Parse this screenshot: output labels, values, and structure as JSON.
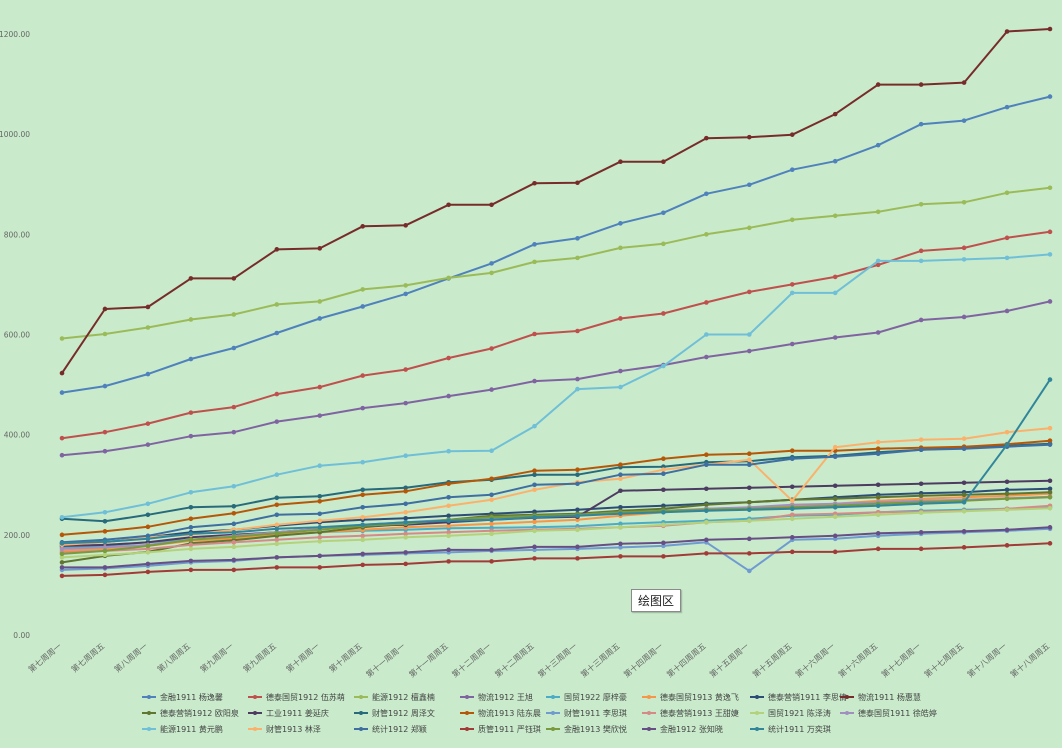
{
  "tooltip": "绘图区",
  "chart_data": {
    "type": "line",
    "ylim": [
      0,
      1200
    ],
    "yticks": [
      "0.00",
      "200.00",
      "400.00",
      "600.00",
      "800.00",
      "1000.00",
      "1200.00"
    ],
    "grid": false,
    "legend_position": "bottom",
    "categories": [
      "第七周周一",
      "第七周周五",
      "第八周周一",
      "第八周周五",
      "第九周周一",
      "第九周周五",
      "第十周周一",
      "第十周周五",
      "第十一周周一",
      "第十一周周五",
      "第十二周周一",
      "第十二周周五",
      "第十三周周一",
      "第十三周周五",
      "第十四周周一",
      "第十四周周五",
      "第十五周周一",
      "第十五周周五",
      "第十六周周一",
      "第十六周周五",
      "第十七周周一",
      "第十七周周五",
      "第十八周周一",
      "第十八周周五"
    ],
    "series": [
      {
        "name": "金融1911 杨逸馨",
        "color": "#4f81bd",
        "values": [
          484,
          497,
          521,
          551,
          573,
          603,
          632,
          656,
          681,
          712,
          742,
          780,
          792,
          822,
          843,
          881,
          899,
          929,
          946,
          978,
          1020,
          1027,
          1054,
          1075
        ]
      },
      {
        "name": "德泰国贸1912 伍苏萌",
        "color": "#c0504d",
        "values": [
          393,
          405,
          422,
          444,
          455,
          481,
          495,
          518,
          530,
          553,
          572,
          601,
          607,
          632,
          642,
          664,
          685,
          700,
          715,
          739,
          767,
          773,
          793,
          805
        ]
      },
      {
        "name": "能源1912 檀鑫楠",
        "color": "#9bbb59",
        "values": [
          592,
          601,
          614,
          630,
          640,
          660,
          666,
          690,
          698,
          713,
          723,
          745,
          753,
          773,
          781,
          800,
          813,
          829,
          837,
          845,
          860,
          864,
          883,
          893
        ]
      },
      {
        "name": "物流1912 王旭",
        "color": "#8064a2",
        "values": [
          359,
          367,
          380,
          397,
          405,
          426,
          438,
          453,
          463,
          477,
          490,
          507,
          511,
          527,
          539,
          555,
          567,
          581,
          594,
          604,
          629,
          635,
          647,
          666
        ]
      },
      {
        "name": "国贸1922 廖梓豪",
        "color": "#4bacc6",
        "values": [
          175,
          178,
          185,
          190,
          193,
          200,
          205,
          208,
          210,
          213,
          214,
          215,
          217,
          222,
          225,
          228,
          232,
          238,
          240,
          245,
          248,
          250,
          252,
          255
        ]
      },
      {
        "name": "德泰国贸1913 黄逸飞",
        "color": "#f79646",
        "values": [
          168,
          172,
          178,
          188,
          192,
          200,
          205,
          210,
          215,
          218,
          222,
          226,
          230,
          238,
          245,
          252,
          254,
          258,
          262,
          268,
          272,
          275,
          278,
          282
        ]
      },
      {
        "name": "德泰营销1911 李思倩",
        "color": "#2c4d75",
        "values": [
          182,
          185,
          195,
          205,
          210,
          218,
          225,
          230,
          233,
          238,
          242,
          246,
          250,
          255,
          258,
          262,
          265,
          270,
          275,
          280,
          283,
          285,
          290,
          292
        ]
      },
      {
        "name": "物流1911 杨惠慧",
        "color": "#772c2a",
        "values": [
          523,
          651,
          655,
          712,
          712,
          770,
          772,
          816,
          818,
          859,
          859,
          902,
          903,
          945,
          945,
          992,
          994,
          999,
          1040,
          1099,
          1099,
          1103,
          1205,
          1210
        ]
      },
      {
        "name": "德泰营销1912 欧阳泉",
        "color": "#5f7530",
        "values": [
          145,
          158,
          166,
          183,
          189,
          198,
          205,
          215,
          222,
          230,
          238,
          240,
          242,
          248,
          252,
          260,
          265,
          270,
          272,
          275,
          278,
          280,
          282,
          285
        ]
      },
      {
        "name": "工业1911 姜延庆",
        "color": "#4d3b62",
        "values": [
          178,
          180,
          185,
          195,
          200,
          205,
          212,
          218,
          220,
          225,
          230,
          234,
          236,
          288,
          290,
          292,
          294,
          296,
          298,
          300,
          302,
          304,
          306,
          308
        ]
      },
      {
        "name": "财管1912 周泽文",
        "color": "#276a7c",
        "values": [
          232,
          227,
          240,
          255,
          257,
          274,
          277,
          290,
          294,
          305,
          310,
          320,
          320,
          335,
          336,
          345,
          347,
          355,
          358,
          365,
          370,
          374,
          378,
          382
        ]
      },
      {
        "name": "物流1913 陆东晨",
        "color": "#b65708",
        "values": [
          200,
          207,
          216,
          232,
          243,
          260,
          267,
          280,
          287,
          302,
          312,
          328,
          330,
          340,
          352,
          360,
          362,
          368,
          368,
          372,
          374,
          376,
          381,
          388
        ]
      },
      {
        "name": "财管1911 李思琪",
        "color": "#6f9bd0",
        "values": [
          130,
          133,
          138,
          145,
          148,
          155,
          158,
          160,
          163,
          165,
          168,
          170,
          172,
          175,
          178,
          185,
          128,
          190,
          192,
          198,
          202,
          205,
          208,
          212
        ]
      },
      {
        "name": "德泰营销1913 王甜婕",
        "color": "#d68a88",
        "values": [
          165,
          168,
          172,
          180,
          185,
          190,
          195,
          198,
          202,
          205,
          208,
          210,
          212,
          215,
          218,
          225,
          228,
          240,
          242,
          245,
          246,
          248,
          252,
          258
        ]
      },
      {
        "name": "国贸1921 陈泽涛",
        "color": "#b4d27c",
        "values": [
          155,
          160,
          165,
          172,
          176,
          182,
          187,
          190,
          195,
          198,
          202,
          208,
          210,
          215,
          220,
          225,
          228,
          232,
          236,
          240,
          244,
          247,
          250,
          253
        ]
      },
      {
        "name": "德泰国贸1911 徐皓婷",
        "color": "#a190bf",
        "values": [
          172,
          175,
          180,
          190,
          198,
          205,
          212,
          220,
          225,
          230,
          233,
          237,
          240,
          245,
          248,
          252,
          255,
          260,
          262,
          265,
          268,
          270,
          273,
          276
        ]
      },
      {
        "name": "能源1911 黄元鹏",
        "color": "#6fbfd8",
        "values": [
          235,
          245,
          262,
          285,
          297,
          320,
          338,
          345,
          358,
          367,
          368,
          417,
          491,
          495,
          537,
          600,
          600,
          683,
          683,
          747,
          747,
          750,
          753,
          760
        ]
      },
      {
        "name": "财管1913 林泽",
        "color": "#fbb16b",
        "values": [
          180,
          185,
          195,
          200,
          210,
          220,
          228,
          235,
          245,
          258,
          270,
          290,
          305,
          312,
          330,
          340,
          350,
          268,
          375,
          385,
          390,
          392,
          405,
          413
        ]
      },
      {
        "name": "统计1912 郑颖",
        "color": "#3e6ea2",
        "values": [
          185,
          190,
          198,
          215,
          222,
          240,
          242,
          255,
          262,
          275,
          280,
          300,
          302,
          320,
          322,
          340,
          340,
          352,
          356,
          362,
          370,
          372,
          376,
          380
        ]
      },
      {
        "name": "质管1911 严钰琪",
        "color": "#a23b38",
        "values": [
          118,
          120,
          126,
          130,
          130,
          135,
          135,
          140,
          142,
          147,
          147,
          153,
          153,
          157,
          157,
          163,
          163,
          166,
          166,
          172,
          172,
          175,
          179,
          183
        ]
      },
      {
        "name": "金融1913 樊欣悦",
        "color": "#7a9a3e",
        "values": [
          162,
          168,
          178,
          190,
          196,
          203,
          210,
          218,
          222,
          230,
          235,
          238,
          240,
          245,
          248,
          250,
          252,
          255,
          258,
          262,
          265,
          268,
          272,
          275
        ]
      },
      {
        "name": "金融1912 张知晓",
        "color": "#674f85",
        "values": [
          135,
          135,
          142,
          148,
          150,
          155,
          158,
          162,
          165,
          170,
          170,
          176,
          176,
          182,
          184,
          190,
          192,
          195,
          198,
          203,
          205,
          207,
          210,
          215
        ]
      },
      {
        "name": "统计1911 万奕琪",
        "color": "#31869b",
        "values": [
          183,
          186,
          192,
          202,
          205,
          212,
          215,
          220,
          225,
          228,
          230,
          235,
          238,
          242,
          245,
          248,
          250,
          252,
          255,
          258,
          262,
          265,
          380,
          510
        ]
      }
    ]
  }
}
